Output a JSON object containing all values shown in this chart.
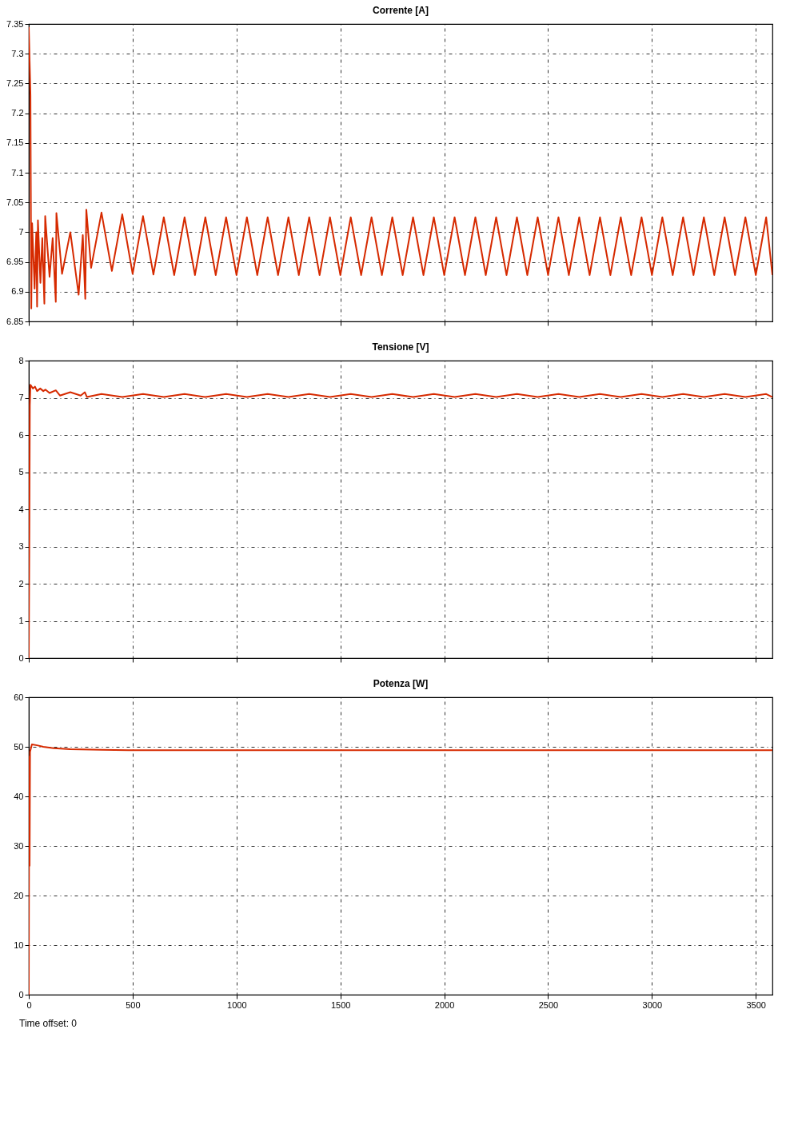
{
  "chart_data": [
    {
      "type": "line",
      "title": "Corrente [A]",
      "xlim": [
        0,
        3580
      ],
      "xticks": [
        0,
        500,
        1000,
        1500,
        2000,
        2500,
        3000,
        3500
      ],
      "ylim": [
        6.85,
        7.35
      ],
      "yticks": [
        6.85,
        6.9,
        6.95,
        7,
        7.05,
        7.1,
        7.15,
        7.2,
        7.25,
        7.3,
        7.35
      ],
      "grid": true,
      "tick_labels": "y",
      "series": [
        {
          "color": "#d62a00",
          "x": [
            0,
            8,
            12,
            16,
            28,
            36,
            40,
            44,
            56,
            65,
            75,
            79,
            100,
            115,
            130,
            133,
            160,
            200,
            240,
            260,
            272,
            277,
            300,
            350,
            400,
            450,
            500,
            550,
            600,
            650,
            700,
            750,
            800,
            850,
            900,
            950,
            1000,
            1050,
            1100,
            1150,
            1200,
            1250,
            1300,
            1350,
            1400,
            1450,
            1500,
            1550,
            1600,
            1650,
            1700,
            1750,
            1800,
            1850,
            1900,
            1950,
            2000,
            2050,
            2100,
            2150,
            2200,
            2250,
            2300,
            2350,
            2400,
            2450,
            2500,
            2550,
            2600,
            2650,
            2700,
            2750,
            2800,
            2850,
            2900,
            2950,
            3000,
            3050,
            3100,
            3150,
            3200,
            3250,
            3300,
            3350,
            3400,
            3450,
            3500,
            3550,
            3580
          ],
          "values": [
            7.345,
            7.23,
            6.872,
            7.015,
            6.905,
            7.0,
            6.875,
            7.02,
            6.915,
            6.99,
            6.88,
            7.027,
            6.925,
            6.99,
            6.883,
            7.032,
            6.93,
            7.0,
            6.895,
            6.995,
            6.888,
            7.038,
            6.94,
            7.033,
            6.935,
            7.03,
            6.93,
            7.027,
            6.929,
            7.025,
            6.928,
            7.025,
            6.928,
            7.025,
            6.928,
            7.025,
            6.928,
            7.025,
            6.928,
            7.025,
            6.928,
            7.025,
            6.928,
            7.025,
            6.928,
            7.025,
            6.928,
            7.025,
            6.928,
            7.025,
            6.928,
            7.025,
            6.928,
            7.025,
            6.928,
            7.025,
            6.928,
            7.025,
            6.928,
            7.025,
            6.928,
            7.025,
            6.928,
            7.025,
            6.928,
            7.025,
            6.928,
            7.025,
            6.928,
            7.025,
            6.928,
            7.025,
            6.928,
            7.025,
            6.928,
            7.025,
            6.928,
            7.025,
            6.928,
            7.025,
            6.928,
            7.025,
            6.928,
            7.025,
            6.928,
            7.025,
            6.928,
            7.025,
            6.928
          ]
        }
      ]
    },
    {
      "type": "line",
      "title": "Tensione [V]",
      "xlim": [
        0,
        3580
      ],
      "xticks": [
        0,
        500,
        1000,
        1500,
        2000,
        2500,
        3000,
        3500
      ],
      "ylim": [
        0,
        8
      ],
      "yticks": [
        0,
        1,
        2,
        3,
        4,
        5,
        6,
        7,
        8
      ],
      "grid": true,
      "tick_labels": "y",
      "series": [
        {
          "color": "#d62a00",
          "x": [
            0,
            3,
            5,
            8,
            20,
            30,
            40,
            55,
            70,
            80,
            100,
            130,
            150,
            200,
            250,
            270,
            280,
            350,
            450,
            550,
            650,
            750,
            850,
            950,
            1050,
            1150,
            1250,
            1350,
            1450,
            1550,
            1650,
            1750,
            1850,
            1950,
            2050,
            2150,
            2250,
            2350,
            2450,
            2550,
            2650,
            2750,
            2850,
            2950,
            3050,
            3150,
            3250,
            3350,
            3450,
            3550,
            3580
          ],
          "values": [
            0,
            3.6,
            6.8,
            7.35,
            7.25,
            7.3,
            7.18,
            7.25,
            7.18,
            7.22,
            7.13,
            7.2,
            7.06,
            7.15,
            7.06,
            7.15,
            7.02,
            7.1,
            7.02,
            7.1,
            7.02,
            7.1,
            7.02,
            7.1,
            7.02,
            7.1,
            7.02,
            7.1,
            7.02,
            7.1,
            7.02,
            7.1,
            7.02,
            7.1,
            7.02,
            7.1,
            7.02,
            7.1,
            7.02,
            7.1,
            7.02,
            7.1,
            7.02,
            7.1,
            7.02,
            7.1,
            7.02,
            7.1,
            7.02,
            7.1,
            7.02
          ]
        }
      ]
    },
    {
      "type": "line",
      "title": "Potenza [W]",
      "xlim": [
        0,
        3580
      ],
      "xticks": [
        0,
        500,
        1000,
        1500,
        2000,
        2500,
        3000,
        3500
      ],
      "ylim": [
        0,
        60
      ],
      "yticks": [
        0,
        10,
        20,
        30,
        40,
        50,
        60
      ],
      "grid": true,
      "annotations": [
        "Time offset: 0"
      ],
      "series": [
        {
          "color": "#d62a00",
          "x": [
            0,
            2,
            4,
            6,
            15,
            40,
            70,
            120,
            200,
            350,
            480,
            3580
          ],
          "values": [
            0,
            48,
            26,
            49,
            50.5,
            50.3,
            50,
            49.7,
            49.5,
            49.4,
            49.3,
            49.3
          ]
        }
      ]
    }
  ]
}
